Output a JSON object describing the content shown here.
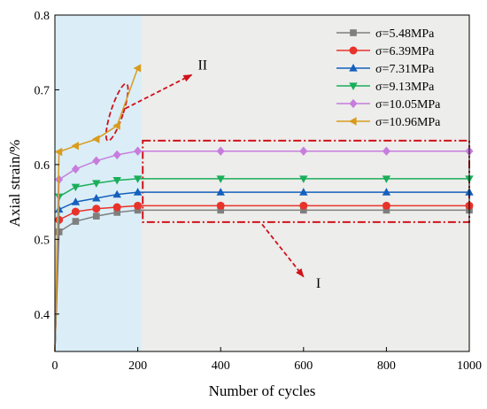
{
  "chart_data": {
    "type": "line",
    "xlabel": "Number of cycles",
    "ylabel": "Axial strain/%",
    "xlim": [
      0,
      1000
    ],
    "ylim": [
      0.35,
      0.8
    ],
    "xticks": [
      0,
      200,
      400,
      600,
      800,
      1000
    ],
    "yticks": [
      0.4,
      0.5,
      0.6,
      0.7,
      0.8
    ],
    "grid": false,
    "legend_position": "top-right",
    "series": [
      {
        "name": "σ=5.48MPa",
        "color": "#7f7f7f",
        "marker": "square",
        "x": [
          0,
          10,
          50,
          100,
          150,
          200,
          400,
          600,
          800,
          1000
        ],
        "y": [
          0.35,
          0.51,
          0.524,
          0.531,
          0.536,
          0.539,
          0.539,
          0.539,
          0.539,
          0.539
        ]
      },
      {
        "name": "σ=6.39MPa",
        "color": "#e8332a",
        "marker": "circle",
        "x": [
          0,
          10,
          50,
          100,
          150,
          200,
          400,
          600,
          800,
          1000
        ],
        "y": [
          0.35,
          0.526,
          0.537,
          0.541,
          0.543,
          0.545,
          0.545,
          0.545,
          0.545,
          0.545
        ]
      },
      {
        "name": "σ=7.31MPa",
        "color": "#1560bd",
        "marker": "triangle-up",
        "x": [
          0,
          10,
          50,
          100,
          150,
          200,
          400,
          600,
          800,
          1000
        ],
        "y": [
          0.35,
          0.54,
          0.55,
          0.555,
          0.56,
          0.563,
          0.563,
          0.563,
          0.563,
          0.563
        ]
      },
      {
        "name": "σ=9.13MPa",
        "color": "#1aae5a",
        "marker": "triangle-down",
        "x": [
          0,
          10,
          50,
          100,
          150,
          200,
          400,
          600,
          800,
          1000
        ],
        "y": [
          0.35,
          0.557,
          0.57,
          0.575,
          0.579,
          0.581,
          0.581,
          0.581,
          0.581,
          0.581
        ]
      },
      {
        "name": "σ=10.05MPa",
        "color": "#c77ddd",
        "marker": "diamond",
        "x": [
          0,
          10,
          50,
          100,
          150,
          200,
          400,
          600,
          800,
          1000
        ],
        "y": [
          0.35,
          0.58,
          0.594,
          0.605,
          0.613,
          0.618,
          0.618,
          0.618,
          0.618,
          0.618
        ]
      },
      {
        "name": "σ=10.96MPa",
        "color": "#d99b1e",
        "marker": "triangle-left",
        "x": [
          0,
          10,
          50,
          100,
          150,
          200
        ],
        "y": [
          0.35,
          0.617,
          0.625,
          0.634,
          0.652,
          0.729
        ]
      }
    ],
    "shaded_regions": [
      {
        "x0": 0,
        "x1": 210,
        "color": "#dbeef7"
      },
      {
        "x0": 210,
        "x1": 1000,
        "color": "#ededeb"
      }
    ],
    "annotations": [
      {
        "label": "I",
        "box": {
          "x0": 212,
          "x1": 1000,
          "y0": 0.523,
          "y1": 0.632
        },
        "arrow_from": {
          "x": 500,
          "y": 0.52
        },
        "arrow_to": {
          "x": 600,
          "y": 0.45
        },
        "text_at": {
          "x": 630,
          "y": 0.435
        }
      },
      {
        "label": "II",
        "ellipse": {
          "cx": 150,
          "cy": 0.67,
          "rx": 15,
          "ry": 0.04
        },
        "arrow_from": {
          "x": 170,
          "y": 0.675
        },
        "arrow_to": {
          "x": 330,
          "y": 0.72
        },
        "text_at": {
          "x": 345,
          "y": 0.727
        }
      }
    ],
    "colors": {
      "annotation": "#d0121b",
      "axis": "#000000"
    }
  }
}
